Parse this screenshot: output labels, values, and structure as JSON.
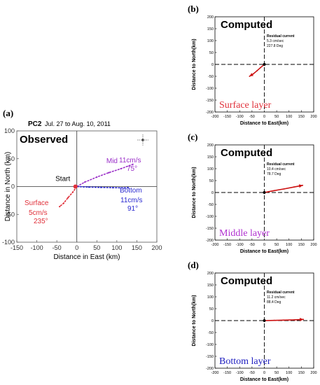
{
  "chart_data": [
    {
      "panel": "(a)",
      "type": "line",
      "site": "PC2",
      "date_range": "Jul. 27 to Aug. 10, 2011",
      "title": "Observed",
      "xlabel": "Distance in East (km)",
      "ylabel": "Distance in North (km)",
      "xlim": [
        -150,
        200
      ],
      "ylim": [
        -100,
        100
      ],
      "xticks": [
        -150,
        -100,
        -50,
        0,
        50,
        100,
        150,
        200
      ],
      "yticks": [
        -100,
        -50,
        0,
        50,
        100
      ],
      "start_label": "Start",
      "series": [
        {
          "name": "Mid",
          "speed": "11cm/s",
          "direction": "75°",
          "color": "#9b30c8",
          "x": [
            0,
            20,
            50,
            80,
            110,
            140
          ],
          "y": [
            0,
            8,
            17,
            25,
            32,
            40
          ]
        },
        {
          "name": "Bottom",
          "speed": "11cm/s",
          "direction": "91°",
          "color": "#2a2ad0",
          "x": [
            0,
            30,
            60,
            90,
            120,
            128
          ],
          "y": [
            0,
            -1,
            -1.5,
            -2,
            -2.5,
            -2
          ]
        },
        {
          "name": "Surface",
          "speed": "5cm/s",
          "direction": "235°",
          "color": "#e0303a",
          "x": [
            0,
            -10,
            -22,
            -33,
            -43
          ],
          "y": [
            0,
            -10,
            -20,
            -30,
            -36
          ]
        }
      ]
    },
    {
      "panel": "(b)",
      "type": "line",
      "title": "Computed",
      "layer": "Surface layer",
      "layer_color": "#e0303a",
      "annotation": [
        "Residual current",
        "5.3 cm/sec",
        "227.8 Deg"
      ],
      "xlabel": "Distance to East(km)",
      "ylabel": "Distance to North(km)",
      "xlim": [
        -200,
        200
      ],
      "ylim": [
        -200,
        200
      ],
      "ticks": [
        -200,
        -150,
        -100,
        -50,
        0,
        50,
        100,
        150,
        200
      ],
      "series": [
        {
          "color": "#cc1111",
          "x": [
            0,
            -15,
            -30,
            -45,
            -60
          ],
          "y": [
            0,
            -13,
            -27,
            -40,
            -50
          ]
        }
      ]
    },
    {
      "panel": "(c)",
      "type": "line",
      "title": "Computed",
      "layer": "Middle layer",
      "layer_color": "#b030d0",
      "annotation": [
        "Residual current",
        "10.4 cm/sec",
        "78.7 Deg"
      ],
      "xlabel": "Distance to East(km)",
      "ylabel": "Distance to North(km)",
      "xlim": [
        -200,
        200
      ],
      "ylim": [
        -200,
        200
      ],
      "ticks": [
        -200,
        -150,
        -100,
        -50,
        0,
        50,
        100,
        150,
        200
      ],
      "series": [
        {
          "color": "#cc1111",
          "x": [
            0,
            40,
            80,
            120,
            155
          ],
          "y": [
            0,
            8,
            15,
            23,
            30
          ]
        }
      ]
    },
    {
      "panel": "(d)",
      "type": "line",
      "title": "Computed",
      "layer": "Bottom layer",
      "layer_color": "#2020c0",
      "annotation": [
        "Residual current",
        "11.2 cm/sec",
        "88.4 Deg"
      ],
      "xlabel": "Distance to East(km)",
      "ylabel": "Distance to North(km)",
      "xlim": [
        -200,
        200
      ],
      "ylim": [
        -200,
        200
      ],
      "ticks": [
        -200,
        -150,
        -100,
        -50,
        0,
        50,
        100,
        150,
        200
      ],
      "series": [
        {
          "color": "#cc1111",
          "x": [
            0,
            40,
            80,
            120,
            158
          ],
          "y": [
            0,
            1,
            2,
            3,
            5
          ]
        }
      ]
    }
  ]
}
